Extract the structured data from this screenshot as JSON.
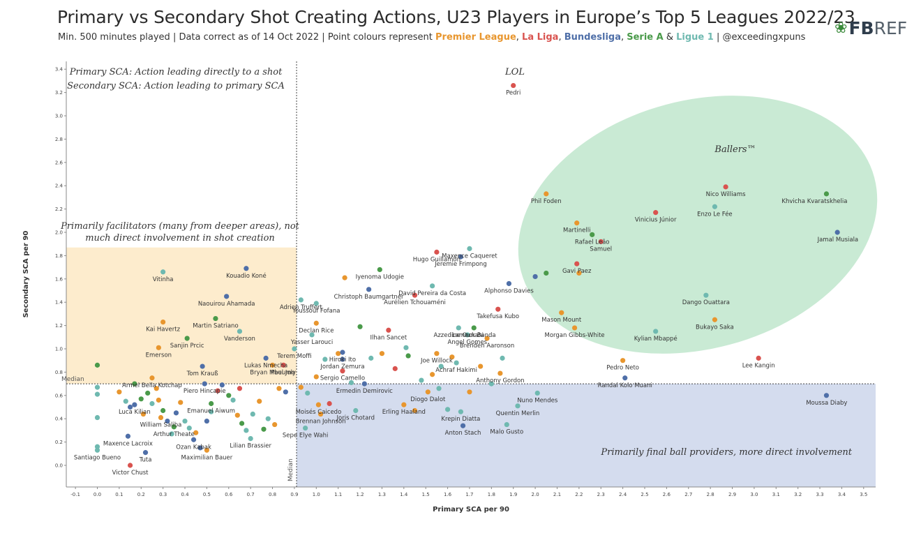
{
  "title": "Primary vs Secondary Shot Creating Actions, U23 Players in Europe’s Top 5 Leagues 2022/23",
  "subtitle": {
    "prefix": "Min. 500 minutes played | Data correct as of 14 Oct 2022 | Point colours represent ",
    "leagues": [
      {
        "name": "Premier League",
        "color": "#e8962e"
      },
      {
        "name": "La Liga",
        "color": "#d9534f"
      },
      {
        "name": "Bundesliga",
        "color": "#4f6fa8"
      },
      {
        "name": "Serie A",
        "color": "#4a9a4a"
      },
      {
        "name": "Ligue 1",
        "color": "#6fb9b0"
      }
    ],
    "sep_comma": ", ",
    "sep_amp": " & ",
    "suffix": " | @exceedingxpuns"
  },
  "logo": {
    "fb": "FB",
    "ref": "REF",
    "icon": "leaf-icon"
  },
  "annotations": {
    "definitions": [
      "Primary SCA: Action leading directly to a shot",
      "Secondary SCA: Action leading to primary SCA"
    ],
    "facilitators": [
      "Primarily facilitators (many from deeper areas), not",
      "much direct involvement in shot creation"
    ],
    "providers": "Primarily final ball providers, more direct involvement",
    "ballers": "Ballers™",
    "lol": "LOL",
    "median_x": "Median",
    "median_y": "Median"
  },
  "chart_data": {
    "type": "scatter",
    "title": "Primary vs Secondary Shot Creating Actions, U23 Players in Europe’s Top 5 Leagues 2022/23",
    "xlabel": "Primary SCA per 90",
    "ylabel": "Secondary SCA per 90",
    "xlim": [
      -0.15,
      3.55
    ],
    "ylim": [
      -0.3,
      3.45
    ],
    "xticks": [
      -0.1,
      0.0,
      0.1,
      0.2,
      0.3,
      0.4,
      0.5,
      0.6,
      0.7,
      0.8,
      0.9,
      1.0,
      1.1,
      1.2,
      1.3,
      1.4,
      1.5,
      1.6,
      1.7,
      1.8,
      1.9,
      2.0,
      2.1,
      2.2,
      2.3,
      2.4,
      2.5,
      2.6,
      2.7,
      2.8,
      2.9,
      3.0,
      3.1,
      3.2,
      3.3,
      3.4,
      3.5
    ],
    "yticks": [
      0.0,
      0.2,
      0.4,
      0.6,
      0.8,
      1.0,
      1.2,
      1.4,
      1.6,
      1.8,
      2.0,
      2.2,
      2.4,
      2.6,
      2.8,
      3.0,
      3.2,
      3.4
    ],
    "median_x": 0.91,
    "median_y": 0.7,
    "grid": false,
    "league_colors": {
      "PL": "#e8962e",
      "LL": "#d9534f",
      "BL": "#4f6fa8",
      "SA": "#4a9a4a",
      "L1": "#6fb9b0"
    },
    "labeled_points": [
      {
        "name": "Pedri",
        "x": 1.9,
        "y": 3.26,
        "league": "LL"
      },
      {
        "name": "Khvicha Kvaratskhelia",
        "x": 3.33,
        "y": 2.33,
        "league": "SA"
      },
      {
        "name": "Jamal Musiala",
        "x": 3.38,
        "y": 2.0,
        "league": "BL"
      },
      {
        "name": "Nico Williams",
        "x": 2.87,
        "y": 2.39,
        "league": "LL"
      },
      {
        "name": "Enzo Le Fée",
        "x": 2.82,
        "y": 2.22,
        "league": "L1"
      },
      {
        "name": "Vinicius Júnior",
        "x": 2.55,
        "y": 2.17,
        "league": "LL"
      },
      {
        "name": "Phil Foden",
        "x": 2.05,
        "y": 2.33,
        "league": "PL"
      },
      {
        "name": "Martinelli",
        "x": 2.19,
        "y": 2.08,
        "league": "PL"
      },
      {
        "name": "Rafael Leão",
        "x": 2.26,
        "y": 1.98,
        "league": "SA"
      },
      {
        "name": "Samuel",
        "x": 2.3,
        "y": 1.92,
        "league": "LL"
      },
      {
        "name": "Gavi Paez",
        "x": 2.19,
        "y": 1.73,
        "league": "LL"
      },
      {
        "name": "Alphonso Davies",
        "x": 1.88,
        "y": 1.56,
        "league": "BL"
      },
      {
        "name": "Maxence Caqueret",
        "x": 1.7,
        "y": 1.86,
        "league": "L1"
      },
      {
        "name": "Hugo Guillamón",
        "x": 1.55,
        "y": 1.83,
        "league": "LL"
      },
      {
        "name": "Jeremie Frimpong",
        "x": 1.66,
        "y": 1.79,
        "league": "BL"
      },
      {
        "name": "David Pereira da Costa",
        "x": 1.53,
        "y": 1.54,
        "league": "L1"
      },
      {
        "name": "Iyenoma Udogie",
        "x": 1.29,
        "y": 1.68,
        "league": "SA"
      },
      {
        "name": "Christoph Baumgartner",
        "x": 1.24,
        "y": 1.51,
        "league": "BL"
      },
      {
        "name": "Aurélien Tchouaméni",
        "x": 1.45,
        "y": 1.46,
        "league": "LL"
      },
      {
        "name": "Dango Ouattara",
        "x": 2.78,
        "y": 1.46,
        "league": "L1"
      },
      {
        "name": "Bukayo Saka",
        "x": 2.82,
        "y": 1.25,
        "league": "PL"
      },
      {
        "name": "Kylian Mbappé",
        "x": 2.55,
        "y": 1.15,
        "league": "L1"
      },
      {
        "name": "Mason Mount",
        "x": 2.12,
        "y": 1.31,
        "league": "PL"
      },
      {
        "name": "Morgan Gibbs-White",
        "x": 2.18,
        "y": 1.18,
        "league": "PL"
      },
      {
        "name": "Takefusa Kubo",
        "x": 1.83,
        "y": 1.34,
        "league": "LL"
      },
      {
        "name": "Azzedine Ounahi",
        "x": 1.65,
        "y": 1.18,
        "league": "L1"
      },
      {
        "name": "Lameck Banda",
        "x": 1.72,
        "y": 1.18,
        "league": "SA"
      },
      {
        "name": "Angel Gomes",
        "x": 1.69,
        "y": 1.12,
        "league": "L1"
      },
      {
        "name": "Brenden Aaronson",
        "x": 1.78,
        "y": 1.09,
        "league": "PL"
      },
      {
        "name": "Joe Willock",
        "x": 1.55,
        "y": 0.96,
        "league": "PL"
      },
      {
        "name": "Achraf Hakimi",
        "x": 1.64,
        "y": 0.88,
        "league": "L1"
      },
      {
        "name": "Anthony Gordon",
        "x": 1.84,
        "y": 0.79,
        "league": "PL"
      },
      {
        "name": "Pedro Neto",
        "x": 2.4,
        "y": 0.9,
        "league": "PL"
      },
      {
        "name": "Randal Kolo Muani",
        "x": 2.41,
        "y": 0.75,
        "league": "BL"
      },
      {
        "name": "Lee Kangin",
        "x": 3.02,
        "y": 0.92,
        "league": "LL"
      },
      {
        "name": "Moussa Diaby",
        "x": 3.33,
        "y": 0.6,
        "league": "BL"
      },
      {
        "name": "Nuno Mendes",
        "x": 2.01,
        "y": 0.62,
        "league": "L1"
      },
      {
        "name": "Quentin Merlin",
        "x": 1.92,
        "y": 0.51,
        "league": "L1"
      },
      {
        "name": "Malo Gusto",
        "x": 1.87,
        "y": 0.35,
        "league": "L1"
      },
      {
        "name": "Anton Stach",
        "x": 1.67,
        "y": 0.34,
        "league": "BL"
      },
      {
        "name": "Krepin Diatta",
        "x": 1.66,
        "y": 0.46,
        "league": "L1"
      },
      {
        "name": "Diogo Dalot",
        "x": 1.51,
        "y": 0.63,
        "league": "PL"
      },
      {
        "name": "Erling Haaland",
        "x": 1.4,
        "y": 0.52,
        "league": "PL"
      },
      {
        "name": "Ermedin Demirovic",
        "x": 1.22,
        "y": 0.7,
        "league": "BL"
      },
      {
        "name": "Joris Chotard",
        "x": 1.18,
        "y": 0.47,
        "league": "L1"
      },
      {
        "name": "Brennan Johnson",
        "x": 1.02,
        "y": 0.44,
        "league": "PL"
      },
      {
        "name": "Moisés Caicedo",
        "x": 1.01,
        "y": 0.52,
        "league": "PL"
      },
      {
        "name": "Sepe Elye Wahi",
        "x": 0.95,
        "y": 0.32,
        "league": "L1"
      },
      {
        "name": "Sergio Camello",
        "x": 1.12,
        "y": 0.81,
        "league": "LL"
      },
      {
        "name": "Jordan Zemura",
        "x": 1.12,
        "y": 0.91,
        "league": "BL"
      },
      {
        "name": "Hiroki Ito",
        "x": 1.12,
        "y": 0.97,
        "league": "BL"
      },
      {
        "name": "Ilhan Sancet",
        "x": 1.33,
        "y": 1.16,
        "league": "LL"
      },
      {
        "name": "Yasser Larouci",
        "x": 0.98,
        "y": 1.12,
        "league": "L1"
      },
      {
        "name": "Youssouf Fofana",
        "x": 1.0,
        "y": 1.39,
        "league": "L1"
      },
      {
        "name": "Declan Rice",
        "x": 1.0,
        "y": 1.22,
        "league": "PL"
      },
      {
        "name": "Adrien Truffert",
        "x": 0.93,
        "y": 1.42,
        "league": "L1"
      },
      {
        "name": "Terem Moffi",
        "x": 0.9,
        "y": 1.0,
        "league": "L1"
      },
      {
        "name": "Paul Joly",
        "x": 0.85,
        "y": 0.86,
        "league": "LL"
      },
      {
        "name": "Bryan Mbeumo",
        "x": 0.8,
        "y": 0.86,
        "league": "PL"
      },
      {
        "name": "Lukas Nmecha",
        "x": 0.77,
        "y": 0.92,
        "league": "BL"
      },
      {
        "name": "Kouadio Koné",
        "x": 0.68,
        "y": 1.69,
        "league": "BL"
      },
      {
        "name": "Naouirou Ahamada",
        "x": 0.59,
        "y": 1.45,
        "league": "BL"
      },
      {
        "name": "Martin Satriano",
        "x": 0.54,
        "y": 1.26,
        "league": "SA"
      },
      {
        "name": "Vanderson",
        "x": 0.65,
        "y": 1.15,
        "league": "L1"
      },
      {
        "name": "Vitinha",
        "x": 0.3,
        "y": 1.66,
        "league": "L1"
      },
      {
        "name": "Kai Havertz",
        "x": 0.3,
        "y": 1.23,
        "league": "PL"
      },
      {
        "name": "Sanjin Prcic",
        "x": 0.41,
        "y": 1.09,
        "league": "SA"
      },
      {
        "name": "Emerson",
        "x": 0.28,
        "y": 1.01,
        "league": "PL"
      },
      {
        "name": "Tom Krauß",
        "x": 0.48,
        "y": 0.85,
        "league": "BL"
      },
      {
        "name": "Armel Bella Kotchap",
        "x": 0.25,
        "y": 0.75,
        "league": "PL"
      },
      {
        "name": "Piero Hincapie",
        "x": 0.49,
        "y": 0.7,
        "league": "BL"
      },
      {
        "name": "Emanuel Aiwum",
        "x": 0.52,
        "y": 0.53,
        "league": "SA"
      },
      {
        "name": "Luca Kilian",
        "x": 0.17,
        "y": 0.52,
        "league": "BL"
      },
      {
        "name": "William Saliba",
        "x": 0.29,
        "y": 0.41,
        "league": "PL"
      },
      {
        "name": "Arthur Theate",
        "x": 0.35,
        "y": 0.33,
        "league": "SA"
      },
      {
        "name": "Maxence Lacroix",
        "x": 0.14,
        "y": 0.25,
        "league": "BL"
      },
      {
        "name": "Ozan Kabak",
        "x": 0.44,
        "y": 0.22,
        "league": "BL"
      },
      {
        "name": "Lilian Brassier",
        "x": 0.7,
        "y": 0.23,
        "league": "L1"
      },
      {
        "name": "Maximilian Bauer",
        "x": 0.5,
        "y": 0.13,
        "league": "PL"
      },
      {
        "name": "Santiago Bueno",
        "x": 0.0,
        "y": 0.13,
        "league": "L1"
      },
      {
        "name": "Tuta",
        "x": 0.22,
        "y": 0.11,
        "league": "BL"
      },
      {
        "name": "Victor Chust",
        "x": 0.15,
        "y": 0.0,
        "league": "LL"
      }
    ],
    "unlabeled_points": [
      {
        "x": 0.0,
        "y": 0.86,
        "league": "SA"
      },
      {
        "x": 0.0,
        "y": 0.67,
        "league": "L1"
      },
      {
        "x": 0.0,
        "y": 0.61,
        "league": "L1"
      },
      {
        "x": 0.0,
        "y": 0.41,
        "league": "L1"
      },
      {
        "x": 0.0,
        "y": 0.16,
        "league": "L1"
      },
      {
        "x": 0.1,
        "y": 0.63,
        "league": "PL"
      },
      {
        "x": 0.13,
        "y": 0.55,
        "league": "L1"
      },
      {
        "x": 0.15,
        "y": 0.5,
        "league": "BL"
      },
      {
        "x": 0.17,
        "y": 0.7,
        "league": "SA"
      },
      {
        "x": 0.2,
        "y": 0.57,
        "league": "SA"
      },
      {
        "x": 0.21,
        "y": 0.44,
        "league": "PL"
      },
      {
        "x": 0.23,
        "y": 0.62,
        "league": "SA"
      },
      {
        "x": 0.25,
        "y": 0.53,
        "league": "L1"
      },
      {
        "x": 0.27,
        "y": 0.66,
        "league": "PL"
      },
      {
        "x": 0.28,
        "y": 0.56,
        "league": "PL"
      },
      {
        "x": 0.3,
        "y": 0.47,
        "league": "SA"
      },
      {
        "x": 0.32,
        "y": 0.38,
        "league": "BL"
      },
      {
        "x": 0.34,
        "y": 0.27,
        "league": "L1"
      },
      {
        "x": 0.36,
        "y": 0.45,
        "league": "BL"
      },
      {
        "x": 0.38,
        "y": 0.54,
        "league": "PL"
      },
      {
        "x": 0.4,
        "y": 0.38,
        "league": "L1"
      },
      {
        "x": 0.42,
        "y": 0.32,
        "league": "L1"
      },
      {
        "x": 0.45,
        "y": 0.28,
        "league": "PL"
      },
      {
        "x": 0.47,
        "y": 0.15,
        "league": "BL"
      },
      {
        "x": 0.5,
        "y": 0.38,
        "league": "BL"
      },
      {
        "x": 0.52,
        "y": 0.46,
        "league": "L1"
      },
      {
        "x": 0.55,
        "y": 0.64,
        "league": "LL"
      },
      {
        "x": 0.57,
        "y": 0.69,
        "league": "BL"
      },
      {
        "x": 0.6,
        "y": 0.6,
        "league": "SA"
      },
      {
        "x": 0.62,
        "y": 0.56,
        "league": "L1"
      },
      {
        "x": 0.64,
        "y": 0.43,
        "league": "PL"
      },
      {
        "x": 0.65,
        "y": 0.66,
        "league": "LL"
      },
      {
        "x": 0.66,
        "y": 0.36,
        "league": "SA"
      },
      {
        "x": 0.68,
        "y": 0.3,
        "league": "L1"
      },
      {
        "x": 0.71,
        "y": 0.44,
        "league": "L1"
      },
      {
        "x": 0.74,
        "y": 0.55,
        "league": "PL"
      },
      {
        "x": 0.76,
        "y": 0.31,
        "league": "SA"
      },
      {
        "x": 0.78,
        "y": 0.4,
        "league": "L1"
      },
      {
        "x": 0.81,
        "y": 0.35,
        "league": "PL"
      },
      {
        "x": 0.83,
        "y": 0.66,
        "league": "PL"
      },
      {
        "x": 0.86,
        "y": 0.63,
        "league": "BL"
      },
      {
        "x": 0.93,
        "y": 0.67,
        "league": "PL"
      },
      {
        "x": 0.96,
        "y": 0.62,
        "league": "L1"
      },
      {
        "x": 1.0,
        "y": 0.76,
        "league": "PL"
      },
      {
        "x": 1.04,
        "y": 0.91,
        "league": "L1"
      },
      {
        "x": 1.06,
        "y": 0.53,
        "league": "LL"
      },
      {
        "x": 1.1,
        "y": 0.96,
        "league": "PL"
      },
      {
        "x": 1.13,
        "y": 1.61,
        "league": "PL"
      },
      {
        "x": 1.16,
        "y": 0.71,
        "league": "L1"
      },
      {
        "x": 1.2,
        "y": 1.19,
        "league": "SA"
      },
      {
        "x": 1.25,
        "y": 0.92,
        "league": "L1"
      },
      {
        "x": 1.3,
        "y": 0.96,
        "league": "PL"
      },
      {
        "x": 1.36,
        "y": 0.83,
        "league": "LL"
      },
      {
        "x": 1.41,
        "y": 1.01,
        "league": "L1"
      },
      {
        "x": 1.42,
        "y": 0.94,
        "league": "SA"
      },
      {
        "x": 1.48,
        "y": 0.73,
        "league": "L1"
      },
      {
        "x": 1.53,
        "y": 0.78,
        "league": "PL"
      },
      {
        "x": 1.57,
        "y": 0.85,
        "league": "L1"
      },
      {
        "x": 1.6,
        "y": 0.48,
        "league": "L1"
      },
      {
        "x": 1.62,
        "y": 0.93,
        "league": "PL"
      },
      {
        "x": 1.7,
        "y": 0.63,
        "league": "PL"
      },
      {
        "x": 1.75,
        "y": 0.85,
        "league": "PL"
      },
      {
        "x": 1.8,
        "y": 0.7,
        "league": "L1"
      },
      {
        "x": 1.85,
        "y": 0.92,
        "league": "L1"
      },
      {
        "x": 2.0,
        "y": 1.62,
        "league": "BL"
      },
      {
        "x": 2.05,
        "y": 1.65,
        "league": "SA"
      },
      {
        "x": 2.2,
        "y": 1.65,
        "league": "PL"
      },
      {
        "x": 1.56,
        "y": 0.66,
        "league": "L1"
      },
      {
        "x": 1.45,
        "y": 0.47,
        "league": "PL"
      }
    ]
  }
}
